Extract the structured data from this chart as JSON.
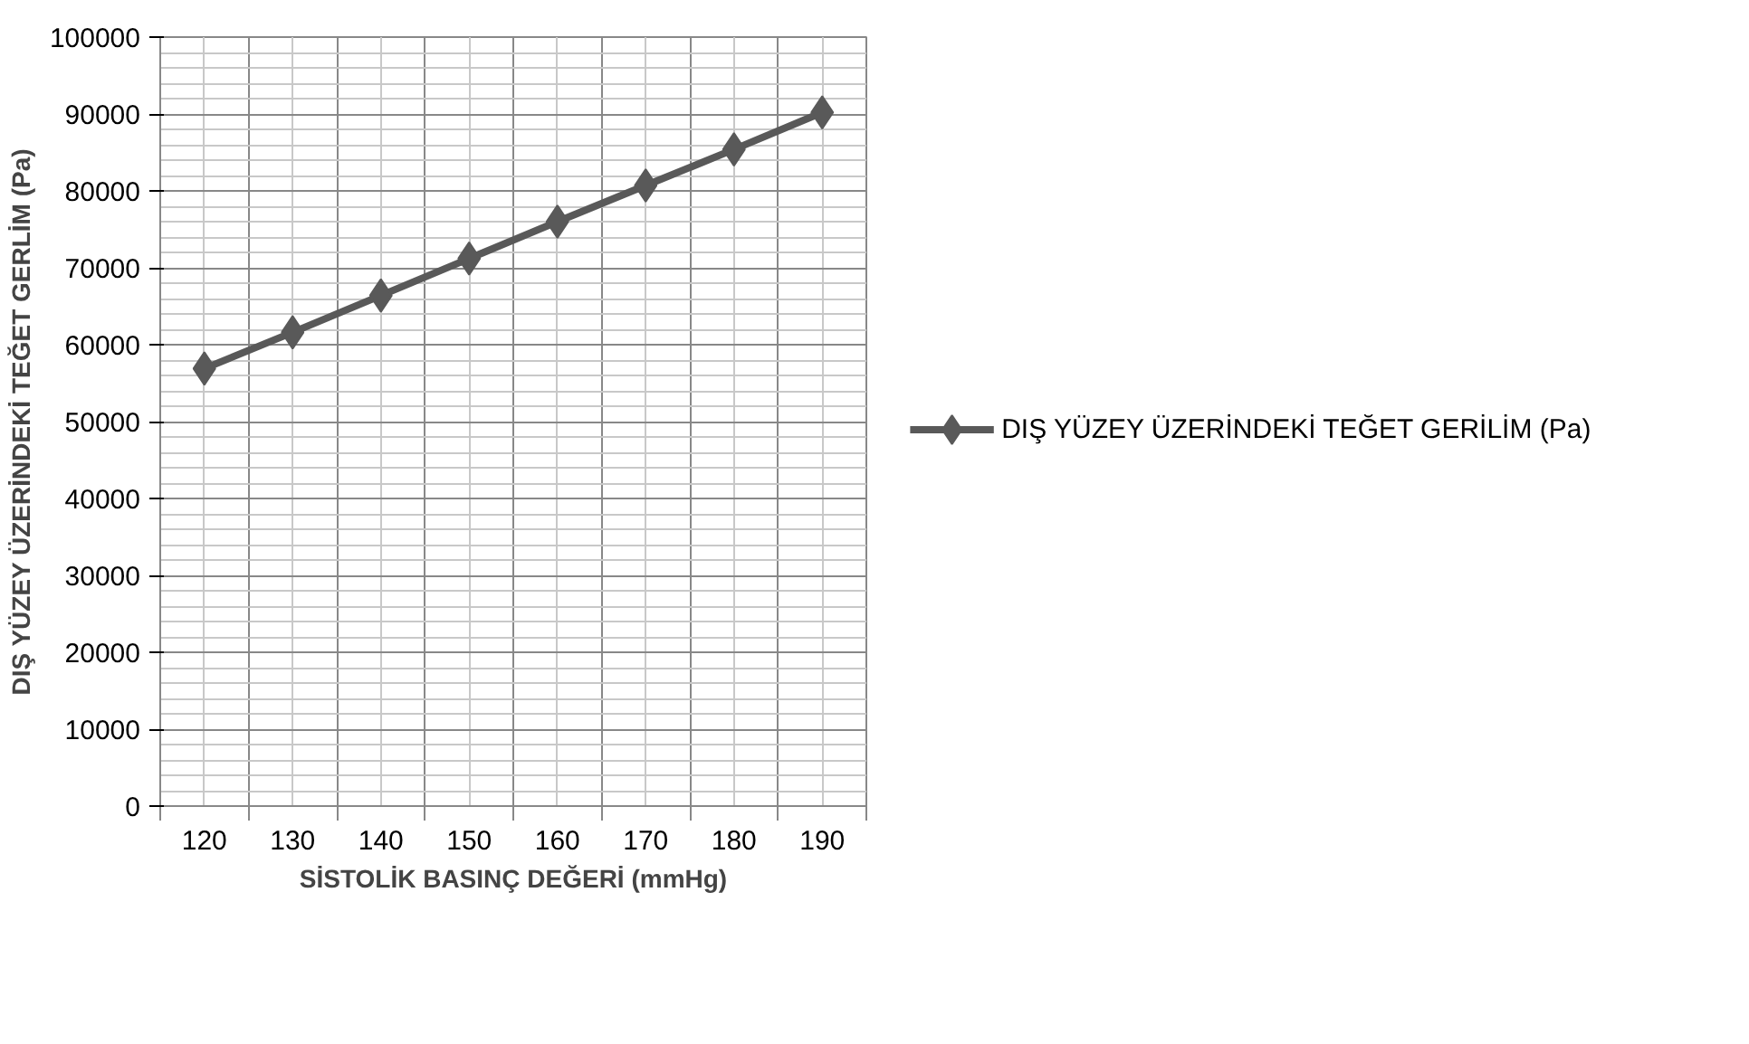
{
  "chart_data": {
    "type": "line",
    "xlabel": "SİSTOLİK BASINÇ DEĞERİ (mmHg)",
    "ylabel": "DIŞ YÜZEY ÜZERİNDEKİ TEĞET GERLİM (Pa)",
    "categories": [
      "120",
      "130",
      "140",
      "150",
      "160",
      "170",
      "180",
      "190"
    ],
    "series": [
      {
        "name": "DIŞ YÜZEY ÜZERİNDEKİ TEĞET GERİLİM (Pa)",
        "color": "#595959",
        "values": [
          56900,
          61600,
          66400,
          71200,
          76000,
          80700,
          85400,
          90200
        ]
      }
    ],
    "ylim": [
      0,
      100000
    ],
    "yticks": [
      0,
      10000,
      20000,
      30000,
      40000,
      50000,
      60000,
      70000,
      80000,
      90000,
      100000
    ],
    "grid": true,
    "legend": "right",
    "marker": "diamond",
    "line_style": "solid"
  }
}
